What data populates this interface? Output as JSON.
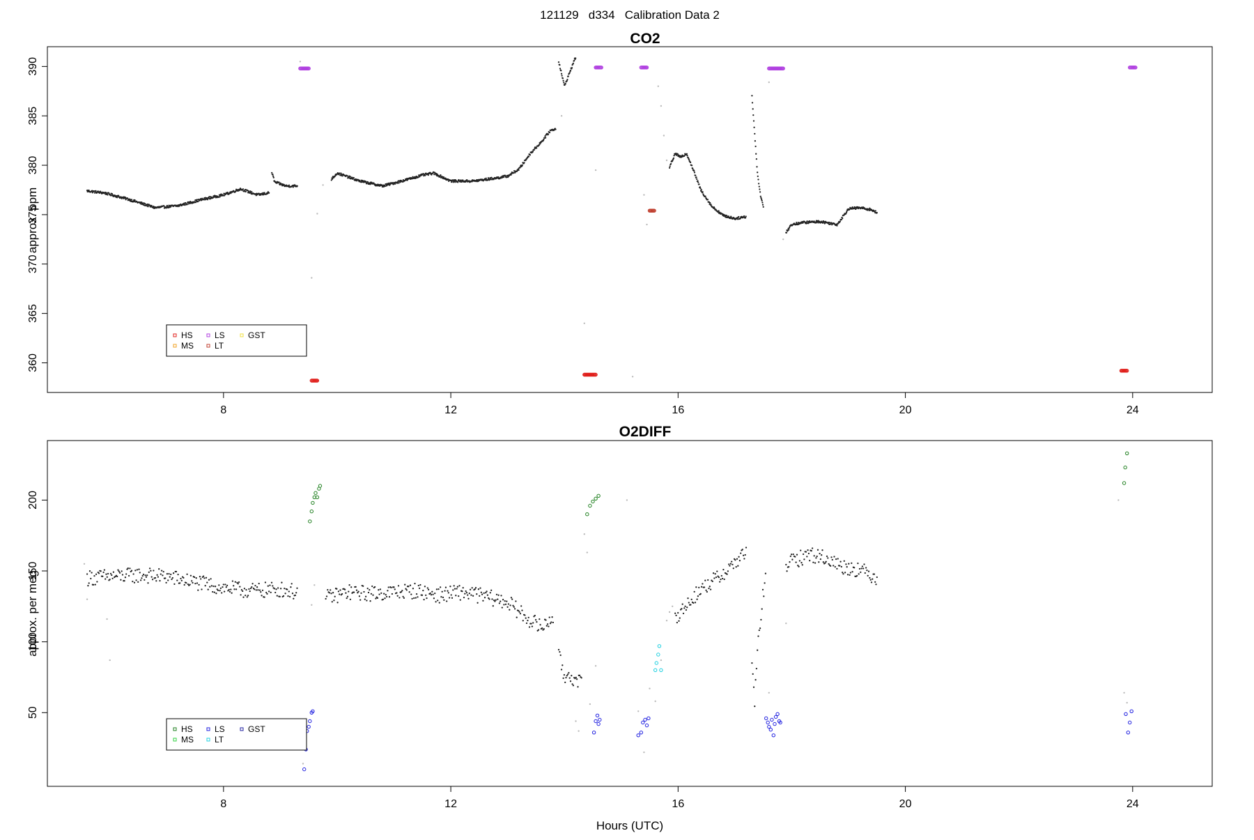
{
  "figure": {
    "title": "121129   d334   Calibration Data 2",
    "xlabel": "Hours (UTC)"
  },
  "chart_data": [
    {
      "type": "scatter",
      "title": "CO2",
      "xlabel": "",
      "ylabel": "approx. ppm",
      "xlim": [
        4.9,
        25.4
      ],
      "ylim": [
        357.0,
        392.0
      ],
      "xticks": [
        8,
        12,
        16,
        20,
        24
      ],
      "yticks": [
        360,
        365,
        370,
        375,
        380,
        385,
        390
      ],
      "grid": false,
      "legend": {
        "placement": "bottom-left",
        "entries": [
          {
            "label": "HS",
            "color": "#e0201c"
          },
          {
            "label": "MS",
            "color": "#f0a020"
          },
          {
            "label": "LS",
            "color": "#b040e0"
          },
          {
            "label": "LT",
            "color": "#c04030"
          },
          {
            "label": "GST",
            "color": "#f0e040"
          }
        ]
      },
      "ambient_segments": [
        {
          "x": [
            5.6,
            5.9,
            6.3,
            6.8,
            7.2,
            7.6,
            8.0,
            8.3,
            8.6,
            8.8
          ],
          "y": [
            377.4,
            377.2,
            376.6,
            375.7,
            375.9,
            376.5,
            377.0,
            377.6,
            377.0,
            377.2
          ]
        },
        {
          "x": [
            8.85,
            8.9,
            9.1,
            9.3
          ],
          "y": [
            379.3,
            378.3,
            377.9,
            377.9
          ]
        },
        {
          "x": [
            9.9,
            10.0,
            10.4,
            10.8,
            11.2,
            11.5,
            11.7,
            12.0,
            12.4,
            12.8,
            13.0,
            13.2,
            13.4,
            13.6,
            13.75,
            13.85
          ],
          "y": [
            378.6,
            379.2,
            378.4,
            377.9,
            378.5,
            379.0,
            379.2,
            378.4,
            378.4,
            378.7,
            378.9,
            379.6,
            381.2,
            382.4,
            383.5,
            383.7
          ]
        },
        {
          "x": [
            13.9,
            14.0,
            14.1,
            14.2
          ],
          "y": [
            390.5,
            388.0,
            389.5,
            391.0
          ]
        },
        {
          "x": [
            15.85,
            15.95,
            16.05,
            16.15,
            16.25,
            16.4,
            16.6,
            16.8,
            17.0,
            17.2
          ],
          "y": [
            379.8,
            381.2,
            380.8,
            381.2,
            379.8,
            377.5,
            375.8,
            374.9,
            374.6,
            374.8
          ]
        },
        {
          "x": [
            17.3,
            17.35,
            17.4,
            17.45,
            17.5
          ],
          "y": [
            387.0,
            383.0,
            379.0,
            377.0,
            375.8
          ]
        },
        {
          "x": [
            17.9,
            18.0,
            18.2,
            18.5,
            18.8,
            18.9,
            19.0,
            19.2,
            19.4,
            19.5
          ],
          "y": [
            373.2,
            374.0,
            374.2,
            374.3,
            374.0,
            374.8,
            375.6,
            375.7,
            375.5,
            375.2
          ]
        }
      ],
      "transition_points": [
        {
          "x": [
            9.35,
            9.55,
            9.65,
            9.75
          ],
          "y": [
            390.5,
            368.6,
            375.1,
            378.0
          ]
        },
        {
          "x": [
            13.95,
            14.35,
            14.55
          ],
          "y": [
            385.0,
            364.0,
            379.5
          ]
        },
        {
          "x": [
            15.2,
            15.4,
            15.45
          ],
          "y": [
            358.6,
            377.0,
            374.0
          ]
        },
        {
          "x": [
            15.65,
            15.7,
            15.75,
            15.8
          ],
          "y": [
            388.0,
            386.0,
            383.0,
            380.5
          ]
        },
        {
          "x": [
            17.6,
            17.85
          ],
          "y": [
            388.4,
            372.5
          ]
        }
      ],
      "calibration": {
        "HS": [
          {
            "x_start": 9.55,
            "x_end": 9.65,
            "value": 358.2
          },
          {
            "x_start": 14.35,
            "x_end": 14.55,
            "value": 358.8
          },
          {
            "x_start": 23.8,
            "x_end": 23.9,
            "value": 359.2
          }
        ],
        "LS": [
          {
            "x_start": 9.35,
            "x_end": 9.5,
            "value": 389.8
          },
          {
            "x_start": 14.55,
            "x_end": 14.65,
            "value": 389.9
          },
          {
            "x_start": 15.35,
            "x_end": 15.45,
            "value": 389.9
          },
          {
            "x_start": 17.6,
            "x_end": 17.85,
            "value": 389.8
          },
          {
            "x_start": 23.95,
            "x_end": 24.05,
            "value": 389.9
          }
        ],
        "LT": [
          {
            "x_start": 15.5,
            "x_end": 15.58,
            "value": 375.4
          }
        ]
      }
    },
    {
      "type": "scatter",
      "title": "O2DIFF",
      "xlabel": "Hours (UTC)",
      "ylabel": "approx. per meg",
      "xlim": [
        4.9,
        25.4
      ],
      "ylim": [
        -2,
        242
      ],
      "xticks": [
        8,
        12,
        16,
        20,
        24
      ],
      "yticks": [
        50,
        100,
        150,
        200
      ],
      "grid": false,
      "legend": {
        "placement": "bottom-left",
        "entries": [
          {
            "label": "HS",
            "color": "#208020"
          },
          {
            "label": "MS",
            "color": "#30d040"
          },
          {
            "label": "LS",
            "color": "#2020e0"
          },
          {
            "label": "LT",
            "color": "#20d0e0"
          },
          {
            "label": "GST",
            "color": "#2020a0"
          }
        ]
      },
      "ambient_segments": [
        {
          "x": [
            5.6,
            6.0,
            6.5,
            7.0,
            7.5,
            8.0,
            8.5,
            9.0,
            9.3
          ],
          "y": [
            145,
            146,
            147,
            146,
            142,
            138,
            136,
            137,
            135
          ]
        },
        {
          "x": [
            9.8,
            10.2,
            10.6,
            11.0,
            11.4,
            11.8,
            12.2,
            12.6,
            13.0,
            13.3,
            13.6,
            13.8
          ],
          "y": [
            131,
            135,
            134,
            135,
            136,
            133,
            135,
            132,
            128,
            118,
            110,
            118
          ]
        },
        {
          "x": [
            13.9,
            14.0,
            14.1,
            14.2,
            14.3
          ],
          "y": [
            90,
            75,
            78,
            70,
            72
          ]
        },
        {
          "x": [
            15.95,
            16.1,
            16.3,
            16.5,
            16.7,
            16.9,
            17.1,
            17.2
          ],
          "y": [
            118,
            123,
            133,
            140,
            145,
            152,
            160,
            163
          ]
        },
        {
          "x": [
            17.3,
            17.35,
            17.4,
            17.45,
            17.5,
            17.55
          ],
          "y": [
            82,
            58,
            95,
            115,
            135,
            145
          ]
        },
        {
          "x": [
            17.9,
            18.1,
            18.3,
            18.6,
            18.9,
            19.2,
            19.5
          ],
          "y": [
            155,
            158,
            162,
            159,
            153,
            151,
            145
          ]
        }
      ],
      "transition_points": [
        {
          "x": [
            5.55,
            5.6,
            5.95,
            6.0
          ],
          "y": [
            155,
            130,
            116,
            87
          ]
        },
        {
          "x": [
            9.4,
            9.55,
            9.6
          ],
          "y": [
            14,
            126,
            140
          ]
        },
        {
          "x": [
            14.2,
            14.25,
            14.35,
            14.4,
            14.45,
            14.55
          ],
          "y": [
            44,
            37,
            176,
            163,
            56,
            83
          ]
        },
        {
          "x": [
            15.1,
            15.3,
            15.4,
            15.5,
            15.6,
            15.7
          ],
          "y": [
            200,
            51,
            22,
            67,
            58,
            87
          ]
        },
        {
          "x": [
            15.8,
            15.85,
            15.9
          ],
          "y": [
            115,
            121,
            125
          ]
        },
        {
          "x": [
            17.6,
            17.9,
            23.75,
            23.85,
            23.9
          ],
          "y": [
            64,
            113,
            200,
            64,
            57
          ]
        }
      ],
      "calibration": {
        "HS": [
          {
            "x": [
              9.52,
              9.55,
              9.57,
              9.6,
              9.62,
              9.65,
              9.68,
              9.7
            ],
            "y": [
              185,
              192,
              198,
              202,
              205,
              202,
              208,
              210
            ]
          },
          {
            "x": [
              14.4,
              14.45,
              14.5,
              14.55,
              14.6
            ],
            "y": [
              190,
              196,
              199,
              201,
              203
            ]
          },
          {
            "x": [
              23.85,
              23.87,
              23.9
            ],
            "y": [
              212,
              223,
              233
            ]
          }
        ],
        "LS": [
          {
            "x": [
              9.42,
              9.45,
              9.47,
              9.5,
              9.52,
              9.55,
              9.57
            ],
            "y": [
              10,
              24,
              37,
              40,
              44,
              50,
              51
            ]
          },
          {
            "x": [
              14.52,
              14.55,
              14.58,
              14.6,
              14.62
            ],
            "y": [
              36,
              44,
              48,
              42,
              45
            ]
          },
          {
            "x": [
              15.3,
              15.35,
              15.38,
              15.42,
              15.45,
              15.48
            ],
            "y": [
              34,
              36,
              43,
              45,
              41,
              46
            ]
          },
          {
            "x": [
              17.55,
              17.58,
              17.6,
              17.63,
              17.65,
              17.68,
              17.7,
              17.72,
              17.75,
              17.78,
              17.8
            ],
            "y": [
              46,
              43,
              40,
              38,
              45,
              34,
              42,
              47,
              49,
              44,
              43
            ]
          },
          {
            "x": [
              23.88,
              23.92,
              23.95,
              23.98
            ],
            "y": [
              49,
              36,
              43,
              51
            ]
          }
        ],
        "LT": [
          {
            "x": [
              15.6,
              15.62,
              15.65,
              15.67,
              15.7
            ],
            "y": [
              80,
              85,
              91,
              97,
              80
            ]
          }
        ]
      }
    }
  ]
}
